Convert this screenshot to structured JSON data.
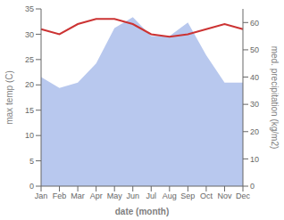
{
  "chart_data": {
    "type": "line",
    "xlabel": "date (month)",
    "ylabel": "max temp (C)",
    "y2label": "med. precipitation (kg/m2)",
    "categories": [
      "Jan",
      "Feb",
      "Mar",
      "Apr",
      "May",
      "Jun",
      "Jul",
      "Aug",
      "Sep",
      "Oct",
      "Nov",
      "Dec"
    ],
    "series": [
      {
        "type": "area",
        "color": "#b8c8ee",
        "axis": "y2",
        "values": [
          40,
          36,
          38,
          45,
          58,
          62,
          55,
          55,
          60,
          48,
          38,
          38
        ]
      },
      {
        "type": "line",
        "color": "#cc3333",
        "values": [
          31.0,
          30.0,
          32.0,
          33.0,
          33.0,
          32.0,
          30.0,
          29.5,
          30.0,
          31.0,
          32.0,
          31.0
        ]
      }
    ],
    "ylim": [
      0,
      35
    ],
    "yticks": [
      0,
      5,
      10,
      15,
      20,
      25,
      30,
      35
    ],
    "y2lim": [
      0,
      65
    ],
    "y2ticks": [
      0,
      10,
      20,
      30,
      40,
      50,
      60
    ],
    "grid": false
  }
}
